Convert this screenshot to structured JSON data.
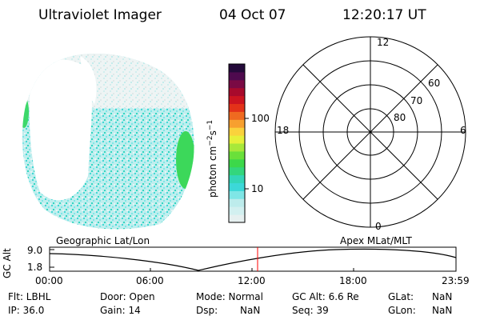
{
  "header": {
    "title": "Ultraviolet Imager",
    "date": "04 Oct 07",
    "time": "12:20:17 UT"
  },
  "colorbar": {
    "unit_label": "photon cm^-2 s^-1",
    "unit_main": "photon cm",
    "unit_exp1": "−2",
    "unit_s": "s",
    "unit_exp2": "−1",
    "tick_100": "100",
    "tick_10": "10",
    "colors": [
      "#e6f0f0",
      "#d2f0f0",
      "#bdecec",
      "#7fe6e6",
      "#3cd8d8",
      "#33d6b8",
      "#33d67c",
      "#3cd84a",
      "#6ae03a",
      "#a8e83a",
      "#e6f03a",
      "#fad23c",
      "#f7a02f",
      "#ef6a20",
      "#e33219",
      "#cc1420",
      "#a80a2c",
      "#7a0a44",
      "#4e0a4e",
      "#240a3a"
    ]
  },
  "polar": {
    "labels": {
      "top": "12",
      "bottom": "0",
      "left": "18",
      "right": "6",
      "r60": "60",
      "r70": "70",
      "r80": "80"
    }
  },
  "timeline": {
    "geo_label": "Geographic Lat/Lon",
    "apex_label": "Apex  MLat/MLT",
    "axis_title": "GC Alt",
    "y_top": "9.0",
    "y_bottom": "1.8",
    "x_ticks": [
      "00:00",
      "06:00",
      "12:00",
      "18:00",
      "23:59"
    ],
    "marker_color": "#ff0000"
  },
  "footer": {
    "flt": "Flt: LBHL",
    "ip": "IP: 36.0",
    "door": "Door: Open",
    "gain": "Gain: 14",
    "mode": "Mode: Normal",
    "dsp_label": "Dsp:",
    "dsp_value": "NaN",
    "gc_alt": "GC Alt: 6.6 Re",
    "seq": "Seq: 39",
    "glat_label": "GLat:",
    "glat_value": "NaN",
    "glon_label": "GLon:",
    "glon_value": "NaN"
  }
}
